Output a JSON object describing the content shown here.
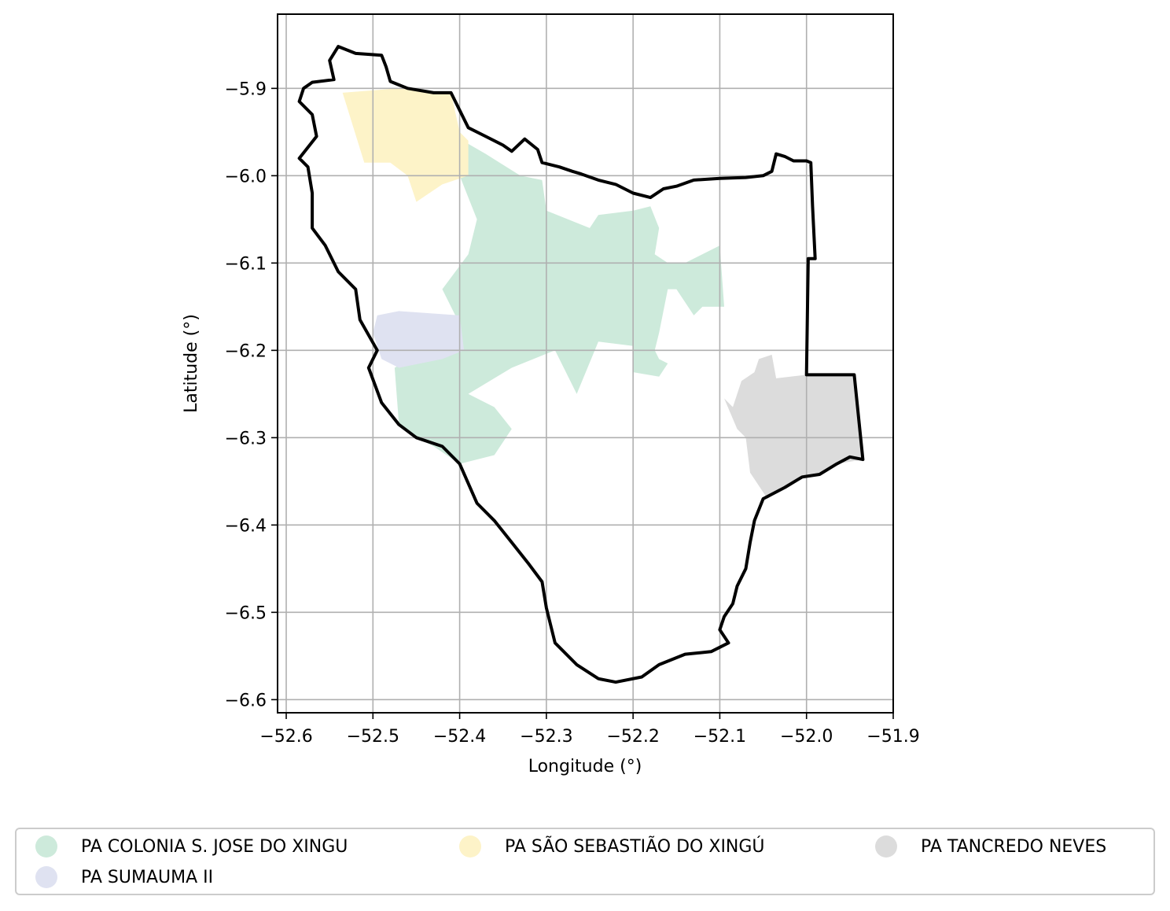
{
  "chart_data": {
    "type": "map",
    "title": "",
    "xlabel": "Longitude (°)",
    "ylabel": "Latitude (°)",
    "xlim": [
      -52.61,
      -51.9
    ],
    "ylim": [
      -6.615,
      -5.815
    ],
    "xticks": [
      -52.6,
      -52.5,
      -52.4,
      -52.3,
      -52.2,
      -52.1,
      -52.0,
      -51.9
    ],
    "yticks": [
      -5.9,
      -6.0,
      -6.1,
      -6.2,
      -6.3,
      -6.4,
      -6.5,
      -6.6
    ],
    "xtick_labels": [
      "−52.6",
      "−52.5",
      "−52.4",
      "−52.3",
      "−52.2",
      "−52.1",
      "−52.0",
      "−51.9"
    ],
    "ytick_labels": [
      "−5.9",
      "−6.0",
      "−6.1",
      "−6.2",
      "−6.3",
      "−6.4",
      "−6.5",
      "−6.6"
    ],
    "grid": true,
    "legend_position": "bottom",
    "boundary_color": "#000000",
    "boundary": [
      [
        -52.54,
        -5.852
      ],
      [
        -52.52,
        -5.86
      ],
      [
        -52.49,
        -5.862
      ],
      [
        -52.485,
        -5.875
      ],
      [
        -52.48,
        -5.892
      ],
      [
        -52.46,
        -5.9
      ],
      [
        -52.43,
        -5.905
      ],
      [
        -52.41,
        -5.905
      ],
      [
        -52.39,
        -5.945
      ],
      [
        -52.37,
        -5.955
      ],
      [
        -52.35,
        -5.965
      ],
      [
        -52.34,
        -5.972
      ],
      [
        -52.325,
        -5.958
      ],
      [
        -52.31,
        -5.97
      ],
      [
        -52.305,
        -5.985
      ],
      [
        -52.285,
        -5.99
      ],
      [
        -52.27,
        -5.995
      ],
      [
        -52.26,
        -5.998
      ],
      [
        -52.24,
        -6.005
      ],
      [
        -52.22,
        -6.01
      ],
      [
        -52.2,
        -6.02
      ],
      [
        -52.18,
        -6.025
      ],
      [
        -52.165,
        -6.015
      ],
      [
        -52.15,
        -6.012
      ],
      [
        -52.13,
        -6.005
      ],
      [
        -52.1,
        -6.003
      ],
      [
        -52.07,
        -6.002
      ],
      [
        -52.05,
        -6.0
      ],
      [
        -52.04,
        -5.995
      ],
      [
        -52.035,
        -5.975
      ],
      [
        -52.025,
        -5.978
      ],
      [
        -52.015,
        -5.983
      ],
      [
        -52.0,
        -5.983
      ],
      [
        -51.995,
        -5.985
      ],
      [
        -51.993,
        -6.035
      ],
      [
        -51.99,
        -6.095
      ],
      [
        -51.998,
        -6.095
      ],
      [
        -52.0,
        -6.228
      ],
      [
        -51.945,
        -6.228
      ],
      [
        -51.935,
        -6.325
      ],
      [
        -51.95,
        -6.322
      ],
      [
        -51.965,
        -6.33
      ],
      [
        -51.985,
        -6.342
      ],
      [
        -52.005,
        -6.345
      ],
      [
        -52.025,
        -6.357
      ],
      [
        -52.05,
        -6.37
      ],
      [
        -52.06,
        -6.395
      ],
      [
        -52.065,
        -6.42
      ],
      [
        -52.07,
        -6.45
      ],
      [
        -52.08,
        -6.47
      ],
      [
        -52.085,
        -6.49
      ],
      [
        -52.095,
        -6.505
      ],
      [
        -52.1,
        -6.52
      ],
      [
        -52.09,
        -6.535
      ],
      [
        -52.11,
        -6.545
      ],
      [
        -52.14,
        -6.548
      ],
      [
        -52.17,
        -6.56
      ],
      [
        -52.19,
        -6.574
      ],
      [
        -52.22,
        -6.58
      ],
      [
        -52.24,
        -6.576
      ],
      [
        -52.265,
        -6.56
      ],
      [
        -52.29,
        -6.535
      ],
      [
        -52.3,
        -6.495
      ],
      [
        -52.305,
        -6.465
      ],
      [
        -52.32,
        -6.445
      ],
      [
        -52.34,
        -6.42
      ],
      [
        -52.36,
        -6.395
      ],
      [
        -52.38,
        -6.375
      ],
      [
        -52.4,
        -6.33
      ],
      [
        -52.42,
        -6.31
      ],
      [
        -52.45,
        -6.3
      ],
      [
        -52.47,
        -6.285
      ],
      [
        -52.49,
        -6.26
      ],
      [
        -52.505,
        -6.22
      ],
      [
        -52.495,
        -6.2
      ],
      [
        -52.515,
        -6.165
      ],
      [
        -52.52,
        -6.13
      ],
      [
        -52.54,
        -6.11
      ],
      [
        -52.555,
        -6.08
      ],
      [
        -52.57,
        -6.06
      ],
      [
        -52.57,
        -6.02
      ],
      [
        -52.575,
        -5.99
      ],
      [
        -52.585,
        -5.98
      ],
      [
        -52.565,
        -5.955
      ],
      [
        -52.57,
        -5.93
      ],
      [
        -52.585,
        -5.915
      ],
      [
        -52.58,
        -5.9
      ],
      [
        -52.57,
        -5.893
      ],
      [
        -52.545,
        -5.89
      ],
      [
        -52.55,
        -5.868
      ],
      [
        -52.54,
        -5.852
      ]
    ],
    "series": [
      {
        "name": "PA COLONIA S. JOSE DO XINGU",
        "color": "#cdeadb",
        "polygons": [
          [
            [
              -52.405,
              -5.955
            ],
            [
              -52.37,
              -5.975
            ],
            [
              -52.33,
              -6.0
            ],
            [
              -52.305,
              -6.005
            ],
            [
              -52.3,
              -6.04
            ],
            [
              -52.25,
              -6.06
            ],
            [
              -52.24,
              -6.045
            ],
            [
              -52.2,
              -6.04
            ],
            [
              -52.18,
              -6.035
            ],
            [
              -52.17,
              -6.06
            ],
            [
              -52.175,
              -6.09
            ],
            [
              -52.16,
              -6.1
            ],
            [
              -52.14,
              -6.1
            ],
            [
              -52.1,
              -6.08
            ],
            [
              -52.095,
              -6.15
            ],
            [
              -52.12,
              -6.15
            ],
            [
              -52.13,
              -6.16
            ],
            [
              -52.15,
              -6.13
            ],
            [
              -52.16,
              -6.13
            ],
            [
              -52.17,
              -6.18
            ],
            [
              -52.175,
              -6.2
            ],
            [
              -52.17,
              -6.21
            ],
            [
              -52.16,
              -6.215
            ],
            [
              -52.17,
              -6.23
            ],
            [
              -52.2,
              -6.225
            ],
            [
              -52.2,
              -6.195
            ],
            [
              -52.24,
              -6.19
            ],
            [
              -52.265,
              -6.25
            ],
            [
              -52.29,
              -6.2
            ],
            [
              -52.34,
              -6.22
            ],
            [
              -52.39,
              -6.25
            ],
            [
              -52.36,
              -6.265
            ],
            [
              -52.34,
              -6.29
            ],
            [
              -52.36,
              -6.32
            ],
            [
              -52.4,
              -6.33
            ],
            [
              -52.43,
              -6.31
            ],
            [
              -52.45,
              -6.3
            ],
            [
              -52.47,
              -6.285
            ],
            [
              -52.475,
              -6.22
            ],
            [
              -52.44,
              -6.2
            ],
            [
              -52.4,
              -6.2
            ],
            [
              -52.4,
              -6.17
            ],
            [
              -52.42,
              -6.13
            ],
            [
              -52.39,
              -6.09
            ],
            [
              -52.38,
              -6.05
            ],
            [
              -52.4,
              -6.0
            ],
            [
              -52.405,
              -5.955
            ]
          ]
        ]
      },
      {
        "name": "PA SUMAUMA II",
        "color": "#dfe2f1",
        "polygons": [
          [
            [
              -52.495,
              -6.16
            ],
            [
              -52.47,
              -6.155
            ],
            [
              -52.4,
              -6.16
            ],
            [
              -52.395,
              -6.2
            ],
            [
              -52.42,
              -6.21
            ],
            [
              -52.47,
              -6.22
            ],
            [
              -52.49,
              -6.21
            ],
            [
              -52.5,
              -6.18
            ],
            [
              -52.495,
              -6.16
            ]
          ]
        ]
      },
      {
        "name": "PA SÃO SEBASTIÃO DO XINGÚ",
        "color": "#fdf3c8",
        "polygons": [
          [
            [
              -52.535,
              -5.905
            ],
            [
              -52.47,
              -5.9
            ],
            [
              -52.43,
              -5.905
            ],
            [
              -52.41,
              -5.905
            ],
            [
              -52.4,
              -5.95
            ],
            [
              -52.39,
              -5.96
            ],
            [
              -52.39,
              -6.0
            ],
            [
              -52.42,
              -6.01
            ],
            [
              -52.45,
              -6.03
            ],
            [
              -52.46,
              -6.0
            ],
            [
              -52.48,
              -5.985
            ],
            [
              -52.51,
              -5.985
            ],
            [
              -52.535,
              -5.905
            ]
          ]
        ]
      },
      {
        "name": "PA TANCREDO NEVES",
        "color": "#dcdcdc",
        "polygons": [
          [
            [
              -52.095,
              -6.255
            ],
            [
              -52.085,
              -6.265
            ],
            [
              -52.075,
              -6.235
            ],
            [
              -52.06,
              -6.225
            ],
            [
              -52.055,
              -6.21
            ],
            [
              -52.04,
              -6.205
            ],
            [
              -52.035,
              -6.232
            ],
            [
              -52.0,
              -6.228
            ],
            [
              -51.945,
              -6.228
            ],
            [
              -51.935,
              -6.325
            ],
            [
              -51.965,
              -6.33
            ],
            [
              -51.985,
              -6.342
            ],
            [
              -52.005,
              -6.345
            ],
            [
              -52.025,
              -6.357
            ],
            [
              -52.045,
              -6.37
            ],
            [
              -52.065,
              -6.34
            ],
            [
              -52.07,
              -6.3
            ],
            [
              -52.08,
              -6.29
            ],
            [
              -52.095,
              -6.255
            ]
          ]
        ]
      }
    ]
  },
  "legend": {
    "items": [
      {
        "label": "PA COLONIA S. JOSE DO XINGU",
        "color": "#cdeadb"
      },
      {
        "label": "PA SÃO SEBASTIÃO DO XINGÚ",
        "color": "#fdf3c8"
      },
      {
        "label": "PA TANCREDO NEVES",
        "color": "#dcdcdc"
      },
      {
        "label": "PA SUMAUMA II",
        "color": "#dfe2f1"
      }
    ]
  }
}
